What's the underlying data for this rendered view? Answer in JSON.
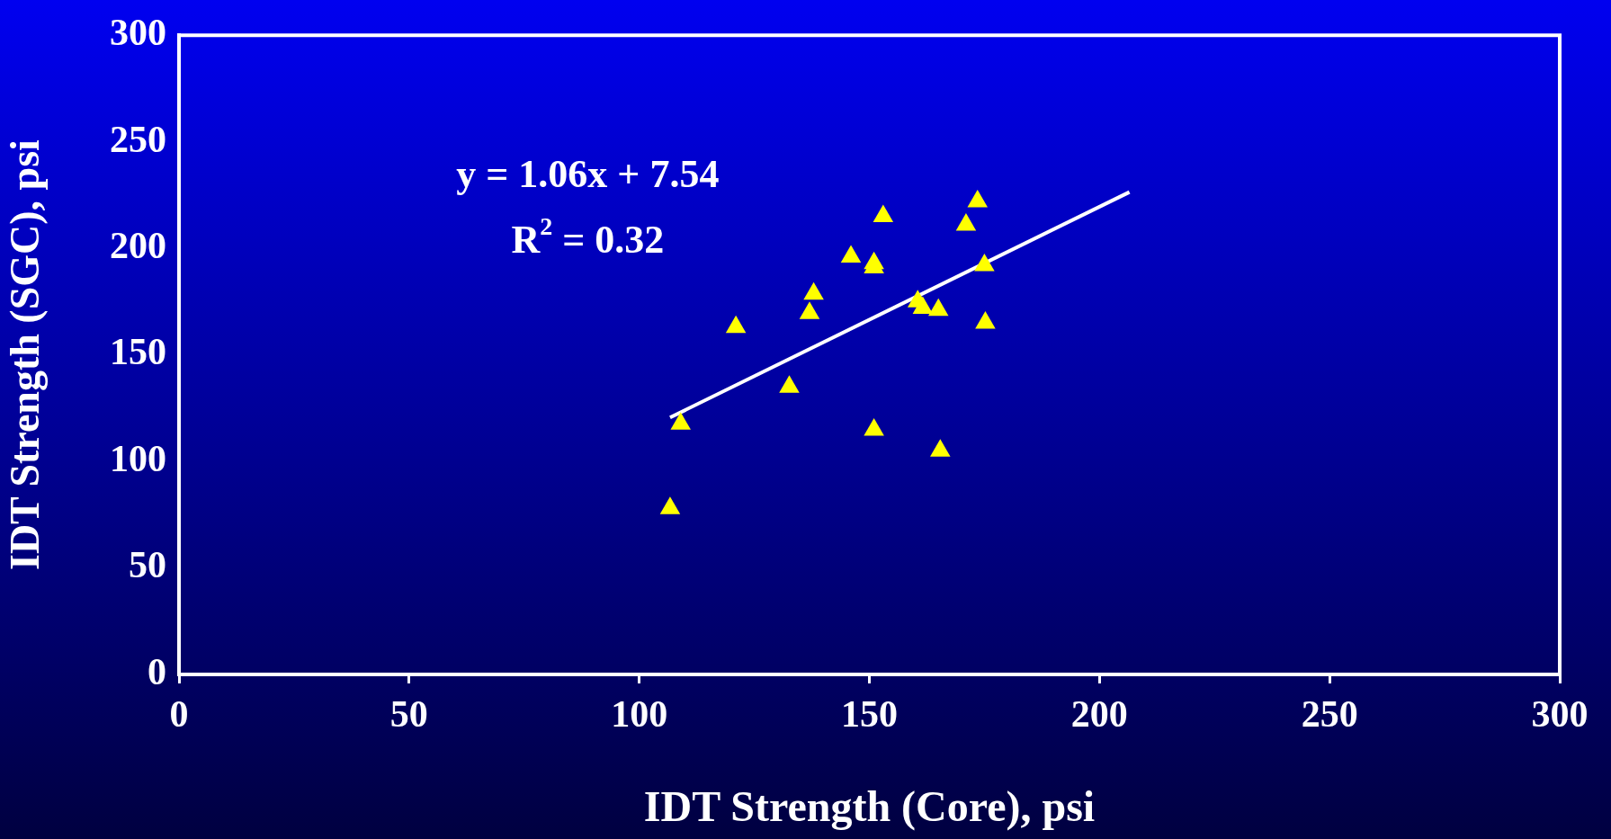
{
  "chart_data": {
    "type": "scatter",
    "xlabel": "IDT Strength (Core), psi",
    "ylabel": "IDT Strength (SGC), psi",
    "annotations": [
      "y = 1.06x + 7.54",
      "R$^{2}$ = 0.32"
    ],
    "series": [
      {
        "type": "scatter",
        "marker": "triangle",
        "color": "#ffff00",
        "x": [
          106.7,
          109,
          121,
          132.6,
          137,
          137.9,
          146,
          151,
          151,
          151,
          153,
          160.5,
          161.6,
          165,
          165.4,
          171,
          173.5,
          175,
          175.2
        ],
        "values": [
          78,
          117.6,
          163,
          135,
          169.6,
          178.6,
          196,
          193,
          191,
          114.8,
          215,
          175,
          172,
          171,
          105,
          211,
          222,
          192,
          165
        ]
      },
      {
        "type": "line",
        "color": "#ffffff",
        "x": [
          106.7,
          206.5
        ],
        "values": [
          120.6,
          226.4
        ]
      }
    ],
    "xlim": [
      0,
      300
    ],
    "ylim": [
      0,
      300
    ],
    "xticks": [
      0,
      50,
      100,
      150,
      200,
      250,
      300
    ],
    "yticks": [
      0,
      50,
      100,
      150,
      200,
      250,
      300
    ],
    "legend": false,
    "grid": false
  }
}
